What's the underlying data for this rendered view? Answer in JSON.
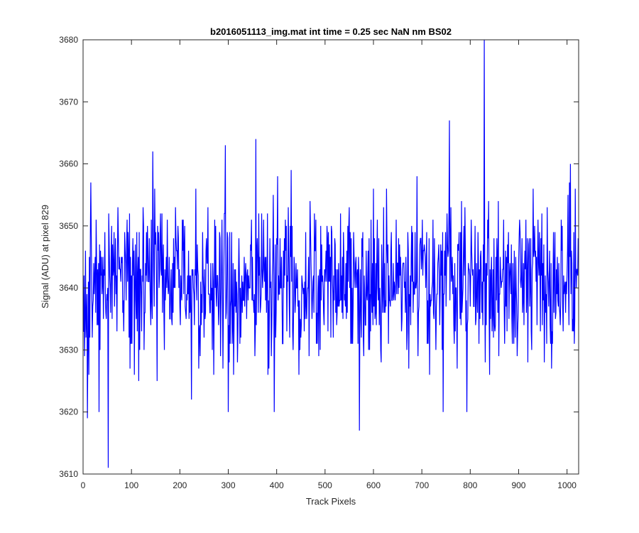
{
  "chart_data": {
    "type": "line",
    "title": "b2016051113_img.mat int time = 0.25 sec  NaN nm BS02",
    "xlabel": "Track Pixels",
    "ylabel": "Signal (ADU) at pixel 829",
    "xlim": [
      0,
      1024
    ],
    "ylim": [
      3610,
      3680
    ],
    "xticks": [
      0,
      100,
      200,
      300,
      400,
      500,
      600,
      700,
      800,
      900,
      1000
    ],
    "yticks": [
      3610,
      3620,
      3630,
      3640,
      3650,
      3660,
      3670,
      3680
    ],
    "grid": false,
    "legend": "none",
    "series": [
      {
        "color": "#0000ff",
        "noise_model": {
          "n_points": 1024,
          "mean": 3641,
          "std": 6.5,
          "notable_points": [
            {
              "x": 52,
              "y": 3611
            },
            {
              "x": 9,
              "y": 3619
            },
            {
              "x": 144,
              "y": 3662
            },
            {
              "x": 294,
              "y": 3663
            },
            {
              "x": 300,
              "y": 3620
            },
            {
              "x": 357,
              "y": 3664
            },
            {
              "x": 395,
              "y": 3620
            },
            {
              "x": 571,
              "y": 3617
            },
            {
              "x": 757,
              "y": 3667
            },
            {
              "x": 793,
              "y": 3620
            },
            {
              "x": 829,
              "y": 3680
            },
            {
              "x": 1007,
              "y": 3660
            }
          ]
        }
      }
    ]
  }
}
